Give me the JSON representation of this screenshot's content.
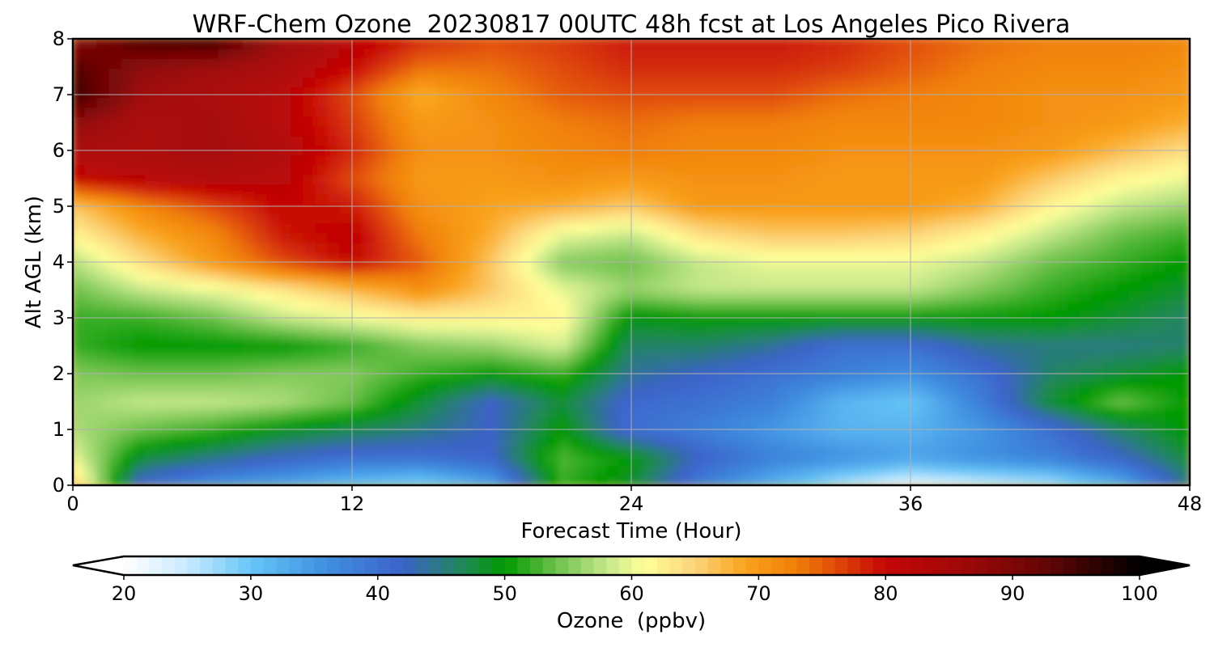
{
  "chart_data": {
    "type": "heatmap",
    "title": "WRF-Chem Ozone  20230817 00UTC 48h fcst at Los Angeles Pico Rivera",
    "xlabel": "Forecast Time (Hour)",
    "ylabel": "Alt AGL (km)",
    "xlim": [
      0,
      48
    ],
    "ylim": [
      0,
      8
    ],
    "x_ticks": [
      0,
      12,
      24,
      36,
      48
    ],
    "x_tick_labels": [
      "0",
      "12",
      "24",
      "36",
      "48"
    ],
    "y_ticks": [
      0,
      1,
      2,
      3,
      4,
      5,
      6,
      7,
      8
    ],
    "y_tick_labels": [
      "0",
      "1",
      "2",
      "3",
      "4",
      "5",
      "6",
      "7",
      "8"
    ],
    "grid": true,
    "x": [
      0,
      3,
      6,
      9,
      12,
      15,
      18,
      21,
      24,
      27,
      30,
      33,
      36,
      39,
      42,
      45,
      48
    ],
    "y": [
      0,
      0.5,
      1,
      1.5,
      2,
      2.5,
      3,
      3.5,
      4,
      4.5,
      5,
      5.5,
      6,
      6.5,
      7,
      7.5,
      8
    ],
    "z": [
      [
        66,
        40,
        35,
        33,
        30,
        28,
        33,
        52,
        48,
        38,
        32,
        26,
        22,
        24,
        26,
        32,
        45
      ],
      [
        60,
        48,
        45,
        42,
        40,
        40,
        42,
        53,
        50,
        42,
        38,
        36,
        34,
        36,
        38,
        42,
        48
      ],
      [
        57,
        54,
        52,
        49,
        47,
        45,
        42,
        50,
        40,
        38,
        35,
        32,
        32,
        35,
        40,
        46,
        50
      ],
      [
        56,
        58,
        58,
        57,
        54,
        48,
        42,
        48,
        41,
        40,
        38,
        32,
        30,
        38,
        48,
        54,
        50
      ],
      [
        55,
        54,
        54,
        55,
        55,
        52,
        50,
        52,
        44,
        42,
        40,
        38,
        36,
        40,
        46,
        48,
        50
      ],
      [
        52,
        50,
        50,
        50,
        52,
        55,
        56,
        59,
        46,
        46,
        44,
        40,
        40,
        44,
        45,
        45,
        46
      ],
      [
        52,
        52,
        54,
        58,
        60,
        62,
        62,
        62,
        49,
        50,
        50,
        50,
        50,
        50,
        50,
        48,
        46
      ],
      [
        54,
        58,
        60,
        63,
        67,
        71,
        66,
        60,
        56,
        58,
        58,
        58,
        58,
        55,
        52,
        50,
        48
      ],
      [
        57,
        64,
        70,
        76,
        80,
        75,
        66,
        55,
        54,
        58,
        60,
        60,
        60,
        58,
        54,
        52,
        50
      ],
      [
        62,
        68,
        72,
        79,
        81,
        73,
        68,
        60,
        58,
        64,
        66,
        66,
        65,
        62,
        58,
        54,
        52
      ],
      [
        66,
        72,
        76,
        80,
        79,
        71,
        69,
        68,
        66,
        70,
        70,
        70,
        70,
        68,
        62,
        58,
        56
      ],
      [
        80,
        82,
        83,
        82,
        76,
        70,
        70,
        71,
        70,
        71,
        71,
        70,
        70,
        70,
        66,
        62,
        60
      ],
      [
        84,
        84,
        85,
        83,
        78,
        71,
        71,
        72,
        73,
        72,
        72,
        71,
        71,
        71,
        70,
        67,
        64
      ],
      [
        88,
        84,
        85,
        82,
        77,
        70,
        71,
        73,
        74,
        73,
        73,
        72,
        72,
        72,
        71,
        70,
        68
      ],
      [
        96,
        86,
        84,
        82,
        76,
        68,
        72,
        75,
        76,
        76,
        76,
        74,
        73,
        72,
        71,
        71,
        70
      ],
      [
        94,
        88,
        86,
        84,
        80,
        74,
        74,
        76,
        78,
        78,
        78,
        77,
        75,
        73,
        72,
        72,
        71
      ],
      [
        88,
        95,
        96,
        86,
        82,
        78,
        76,
        77,
        79,
        79,
        79,
        78,
        76,
        74,
        73,
        73,
        72
      ]
    ],
    "colorbar": {
      "label": "Ozone  (ppbv)",
      "range": [
        20,
        100
      ],
      "extend": "both",
      "orientation": "horizontal",
      "placement": "bottom",
      "ticks": [
        20,
        30,
        40,
        50,
        60,
        70,
        80,
        90,
        100
      ],
      "tick_labels": [
        "20",
        "30",
        "40",
        "50",
        "60",
        "70",
        "80",
        "90",
        "100"
      ],
      "colors": {
        "under": "#ffffff",
        "over": "#000000",
        "stops": [
          [
            20,
            "#ffffff"
          ],
          [
            25,
            "#c8eaff"
          ],
          [
            30,
            "#66c5f7"
          ],
          [
            36,
            "#3f8fe0"
          ],
          [
            42,
            "#3c62c9"
          ],
          [
            47,
            "#1e8a50"
          ],
          [
            50,
            "#009900"
          ],
          [
            54,
            "#6cc04a"
          ],
          [
            58,
            "#c4e78a"
          ],
          [
            61,
            "#ffff99"
          ],
          [
            65,
            "#fcd47a"
          ],
          [
            69,
            "#f9a21c"
          ],
          [
            73,
            "#f07f08"
          ],
          [
            76,
            "#e04b08"
          ],
          [
            80,
            "#c40606"
          ],
          [
            86,
            "#a00808"
          ],
          [
            92,
            "#6b0606"
          ],
          [
            100,
            "#000000"
          ]
        ]
      }
    }
  }
}
